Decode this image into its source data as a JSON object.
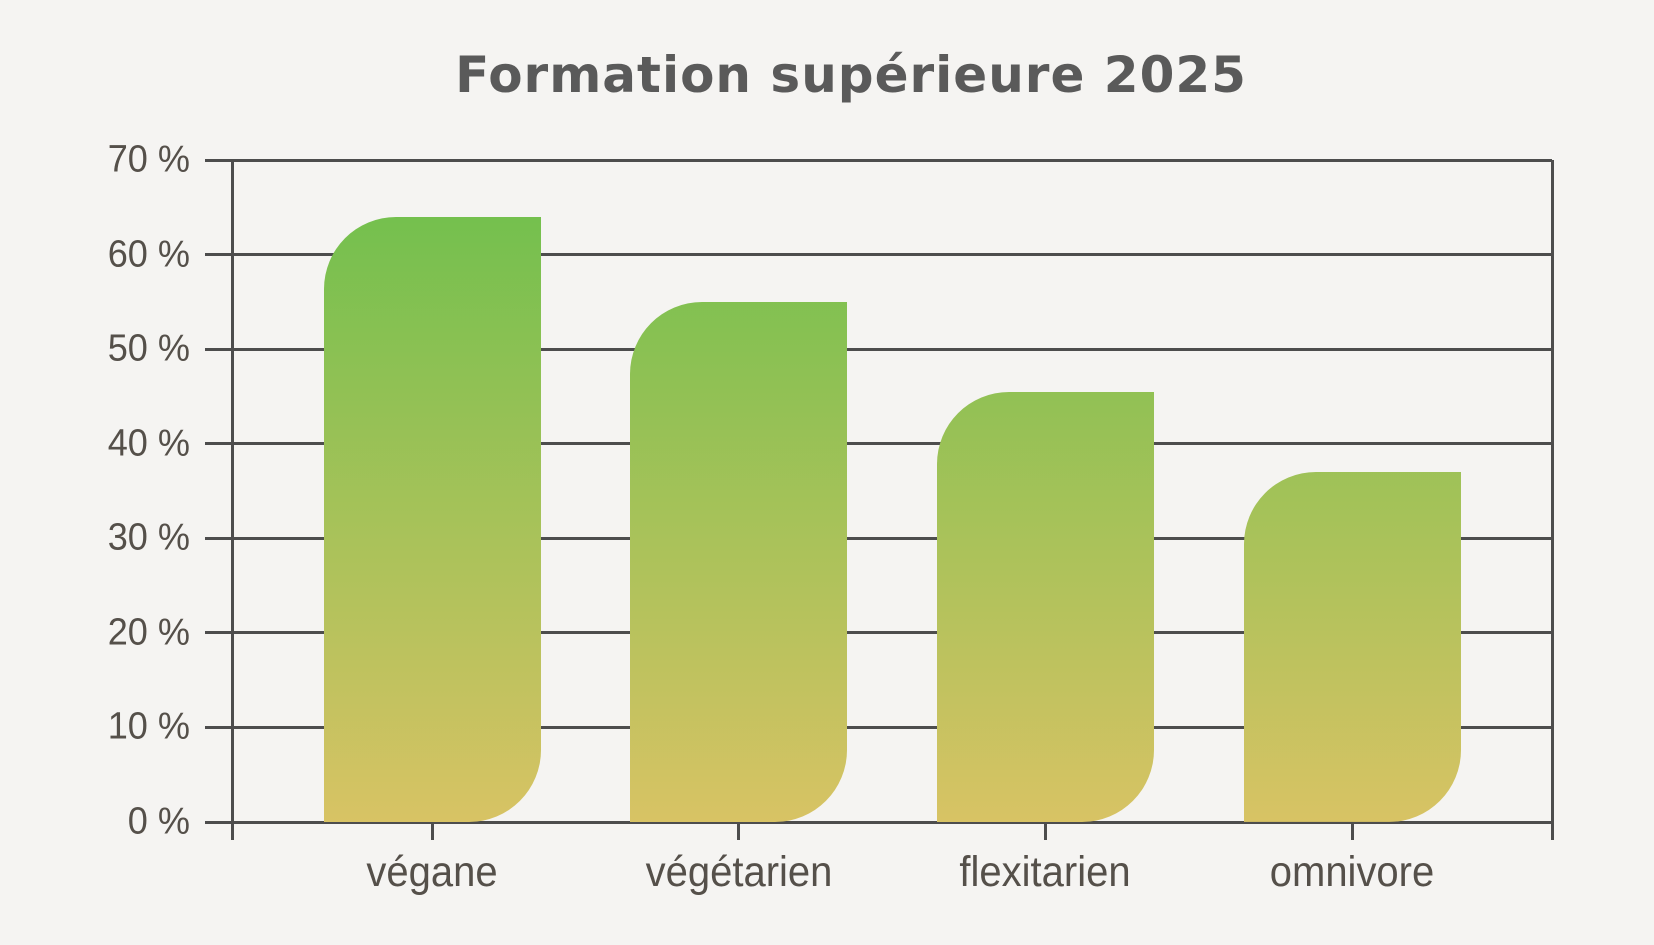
{
  "chart_data": {
    "type": "bar",
    "title": "Formation supérieure 2025",
    "categories": [
      "végane",
      "végétarien",
      "flexitarien",
      "omnivore"
    ],
    "values": [
      64,
      55,
      45.5,
      37
    ],
    "unit": "%",
    "ylabel_format": "{v} %",
    "ylim": [
      0,
      70
    ],
    "ytick_step": 10,
    "ytick_labels": [
      "0 %",
      "10 %",
      "20 %",
      "30 %",
      "40 %",
      "50 %",
      "60 %",
      "70 %"
    ],
    "grid": "horizontal",
    "legend": "none",
    "colors": {
      "background": "#f5f4f2",
      "title": "#5a5a5a",
      "axis_and_grid": "#4d4d4d",
      "tick_label_text": "#55504a",
      "bar_gradient_top": "#6bc04c",
      "bar_gradient_bottom": "#d8c364"
    }
  }
}
